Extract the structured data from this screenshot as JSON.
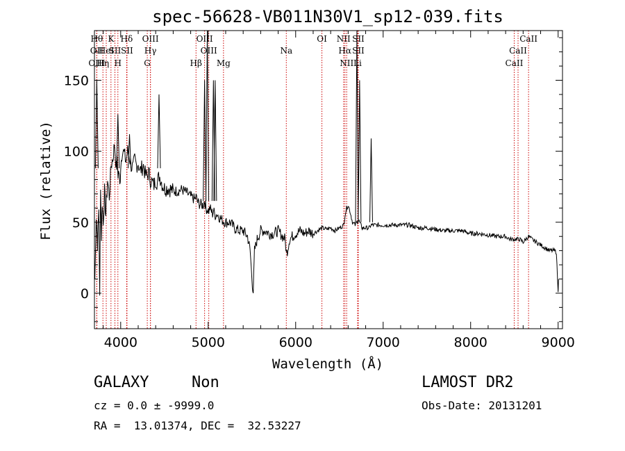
{
  "chart_data": {
    "type": "line",
    "title": "spec-56628-VB011N30V1_sp12-039.fits",
    "xlabel": "Wavelength (Å)",
    "ylabel": "Flux (relative)",
    "xlim": [
      3700,
      9050
    ],
    "ylim": [
      -25,
      185
    ],
    "x_ticks": [
      4000,
      5000,
      6000,
      7000,
      8000,
      9000
    ],
    "y_ticks": [
      0,
      50,
      100,
      150
    ],
    "grid": false,
    "line_color": "#000000",
    "marker_color": "#cc0000",
    "spectrum": {
      "x": [
        3705,
        3720,
        3735,
        3750,
        3760,
        3770,
        3780,
        3790,
        3800,
        3815,
        3830,
        3850,
        3870,
        3890,
        3910,
        3930,
        3950,
        3960,
        3970,
        3980,
        3990,
        4000,
        4020,
        4040,
        4060,
        4080,
        4100,
        4120,
        4140,
        4160,
        4180,
        4200,
        4220,
        4240,
        4260,
        4280,
        4300,
        4320,
        4340,
        4360,
        4380,
        4400,
        4420,
        4440,
        4460,
        4480,
        4500,
        4550,
        4600,
        4650,
        4700,
        4750,
        4800,
        4850,
        4861,
        4880,
        4900,
        4940,
        4959,
        4975,
        5007,
        5020,
        5050,
        5060,
        5080,
        5100,
        5150,
        5200,
        5250,
        5300,
        5350,
        5400,
        5450,
        5480,
        5500,
        5515,
        5530,
        5560,
        5600,
        5650,
        5700,
        5750,
        5800,
        5850,
        5880,
        5893,
        5905,
        5930,
        5960,
        6000,
        6050,
        6100,
        6150,
        6200,
        6250,
        6300,
        6350,
        6400,
        6450,
        6500,
        6550,
        6563,
        6583,
        6600,
        6620,
        6650,
        6680,
        6700,
        6716,
        6731,
        6745,
        6760,
        6800,
        6830,
        6840,
        6860,
        6900,
        6950,
        7000,
        7100,
        7200,
        7250,
        7300,
        7400,
        7500,
        7600,
        7700,
        7800,
        7900,
        8000,
        8100,
        8200,
        8300,
        8400,
        8450,
        8500,
        8542,
        8560,
        8600,
        8662,
        8700,
        8750,
        8800,
        8850,
        8900,
        8950,
        8980,
        9000,
        9005
      ],
      "y": [
        10,
        55,
        35,
        60,
        -5,
        78,
        40,
        65,
        48,
        72,
        55,
        80,
        68,
        90,
        95,
        105,
        88,
        92,
        84,
        86,
        75,
        90,
        102,
        98,
        93,
        100,
        96,
        90,
        88,
        94,
        90,
        92,
        86,
        88,
        90,
        84,
        82,
        85,
        80,
        78,
        76,
        80,
        78,
        83,
        80,
        76,
        74,
        74,
        72,
        72,
        73,
        71,
        68,
        66,
        68,
        64,
        63,
        62,
        65,
        60,
        58,
        60,
        56,
        58,
        55,
        56,
        52,
        50,
        50,
        46,
        44,
        44,
        40,
        30,
        10,
        1,
        30,
        38,
        44,
        44,
        42,
        42,
        44,
        40,
        38,
        28,
        30,
        38,
        40,
        42,
        44,
        42,
        44,
        42,
        44,
        46,
        45,
        46,
        44,
        46,
        48,
        55,
        60,
        62,
        58,
        50,
        48,
        50,
        52,
        50,
        48,
        46,
        46,
        46,
        46,
        48,
        48,
        48,
        48,
        48,
        48,
        48,
        48,
        46,
        46,
        45,
        44,
        44,
        44,
        42,
        42,
        41,
        40,
        40,
        38,
        38,
        38,
        38,
        36,
        40,
        38,
        36,
        34,
        32,
        30,
        30,
        29,
        0,
        10
      ]
    },
    "emission_spikes": [
      {
        "x": 3727,
        "y": 150
      },
      {
        "x": 3968,
        "y": 126
      },
      {
        "x": 4101,
        "y": 112
      },
      {
        "x": 4438,
        "y": 140
      },
      {
        "x": 4959,
        "y": 150
      },
      {
        "x": 4990,
        "y": 186
      },
      {
        "x": 5060,
        "y": 150
      },
      {
        "x": 5080,
        "y": 150
      },
      {
        "x": 6700,
        "y": 186
      },
      {
        "x": 6731,
        "y": 150
      },
      {
        "x": 6863,
        "y": 109
      }
    ],
    "line_markers": [
      {
        "x": 3727,
        "row": 0,
        "label": "Hθ"
      },
      {
        "x": 3727,
        "row": 1,
        "label": "OII"
      },
      {
        "x": 3727,
        "row": 2,
        "label": "OIII"
      },
      {
        "x": 3797,
        "row": 2,
        "label": "Hη"
      },
      {
        "x": 3835,
        "row": 1,
        "label": "HeI"
      },
      {
        "x": 3889,
        "row": 0,
        "label": "K"
      },
      {
        "x": 3934,
        "row": 1,
        "label": "SII"
      },
      {
        "x": 3968,
        "row": 2,
        "label": "H"
      },
      {
        "x": 4068,
        "row": 0,
        "label": "Hδ"
      },
      {
        "x": 4072,
        "row": 1,
        "label": "SII"
      },
      {
        "x": 4340,
        "row": 0,
        "label": "OIII"
      },
      {
        "x": 4340,
        "row": 1,
        "label": "Hγ"
      },
      {
        "x": 4304,
        "row": 2,
        "label": "G"
      },
      {
        "x": 4861,
        "row": 2,
        "label": "Hβ"
      },
      {
        "x": 4959,
        "row": 0,
        "label": "OIII"
      },
      {
        "x": 5007,
        "row": 1,
        "label": "OIII"
      },
      {
        "x": 5175,
        "row": 2,
        "label": "Mg"
      },
      {
        "x": 5893,
        "row": 1,
        "label": "Na"
      },
      {
        "x": 6300,
        "row": 0,
        "label": "OI"
      },
      {
        "x": 6548,
        "row": 0,
        "label": "NII"
      },
      {
        "x": 6563,
        "row": 1,
        "label": "Hα"
      },
      {
        "x": 6583,
        "row": 2,
        "label": "NII"
      },
      {
        "x": 6716,
        "row": 0,
        "label": "SII"
      },
      {
        "x": 6716,
        "row": 1,
        "label": "SII"
      },
      {
        "x": 6708,
        "row": 2,
        "label": "Li"
      },
      {
        "x": 8662,
        "row": 0,
        "label": "CaII"
      },
      {
        "x": 8542,
        "row": 1,
        "label": "CaII"
      },
      {
        "x": 8498,
        "row": 2,
        "label": "CaII"
      }
    ]
  },
  "info": {
    "class_label": "GALAXY",
    "subclass_label": "Non",
    "cz_line": "cz = 0.0 ± -9999.0",
    "radec_line": "RA =  13.01374, DEC =  32.53227",
    "survey_label": "LAMOST DR2",
    "obs_date_line": "Obs-Date: 20131201"
  }
}
